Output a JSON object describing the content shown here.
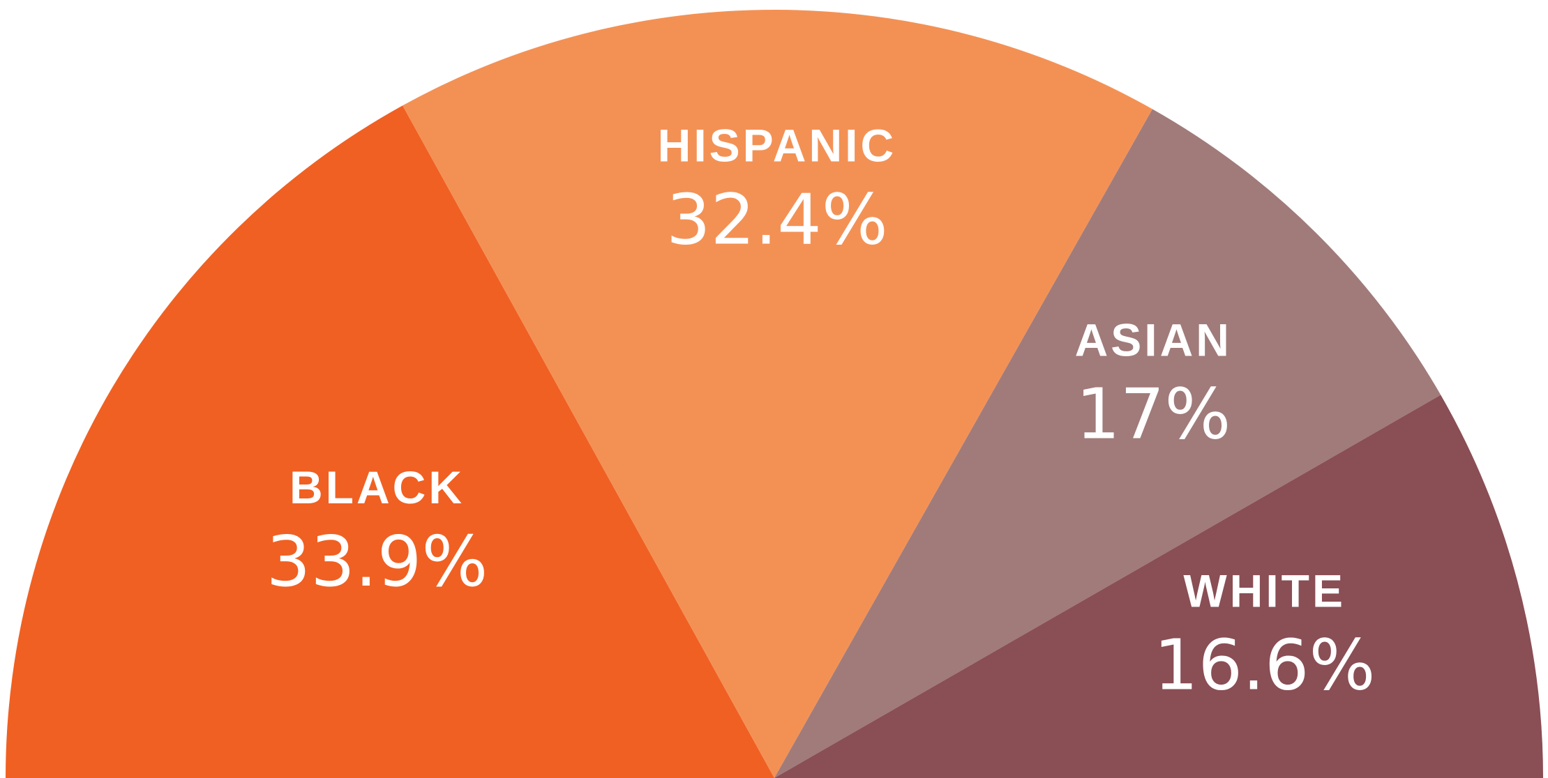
{
  "chart_data": {
    "type": "pie",
    "variant": "half-donut",
    "categories": [
      "BLACK",
      "HISPANIC",
      "ASIAN",
      "WHITE"
    ],
    "values": [
      33.9,
      32.4,
      17,
      16.6
    ],
    "value_labels": [
      "33.9%",
      "32.4%",
      "17%",
      "16.6%"
    ],
    "colors": [
      "#f06022",
      "#f39155",
      "#a07b7a",
      "#8a4e55"
    ],
    "title": "",
    "legend": "none"
  }
}
